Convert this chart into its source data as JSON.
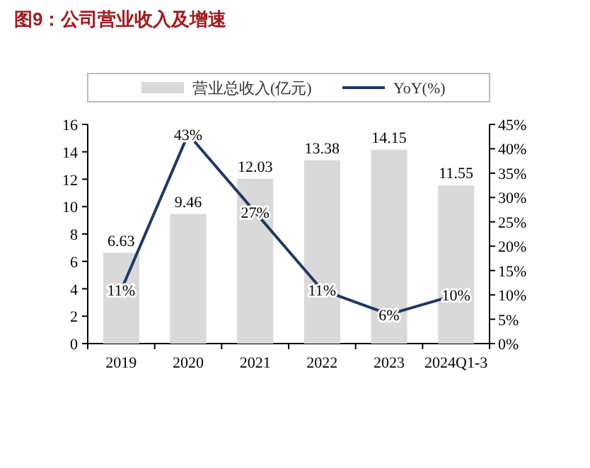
{
  "chart_data": {
    "type": "bar",
    "title": "图9：公司营业收入及增速",
    "categories": [
      "2019",
      "2020",
      "2021",
      "2022",
      "2023",
      "2024Q1-3"
    ],
    "series": [
      {
        "name": "营业总收入(亿元)",
        "color": "#d9d9d9",
        "values": [
          6.63,
          9.46,
          12.03,
          13.38,
          14.15,
          11.55
        ],
        "value_labels": [
          "6.63",
          "9.46",
          "12.03",
          "13.38",
          "14.15",
          "11.55"
        ]
      },
      {
        "name": "YoY(%)",
        "type": "line",
        "axis": "y2",
        "color": "#1f3864",
        "values": [
          11,
          43,
          27,
          11,
          6,
          10
        ],
        "value_labels": [
          "11%",
          "43%",
          "27%",
          "11%",
          "6%",
          "10%"
        ]
      }
    ],
    "ylim": [
      0,
      16
    ],
    "yticks": [
      0,
      2,
      4,
      6,
      8,
      10,
      12,
      14,
      16
    ],
    "y2lim": [
      0,
      45
    ],
    "y2ticks": [
      {
        "value": 0,
        "label": "0%"
      },
      {
        "value": 5,
        "label": "5%"
      },
      {
        "value": 10,
        "label": "10%"
      },
      {
        "value": 15,
        "label": "15%"
      },
      {
        "value": 20,
        "label": "20%"
      },
      {
        "value": 25,
        "label": "25%"
      },
      {
        "value": 30,
        "label": "30%"
      },
      {
        "value": 35,
        "label": "35%"
      },
      {
        "value": 40,
        "label": "40%"
      },
      {
        "value": 45,
        "label": "45%"
      }
    ],
    "legend": "top",
    "grid": false,
    "marker": "none",
    "line_style": "solid"
  }
}
